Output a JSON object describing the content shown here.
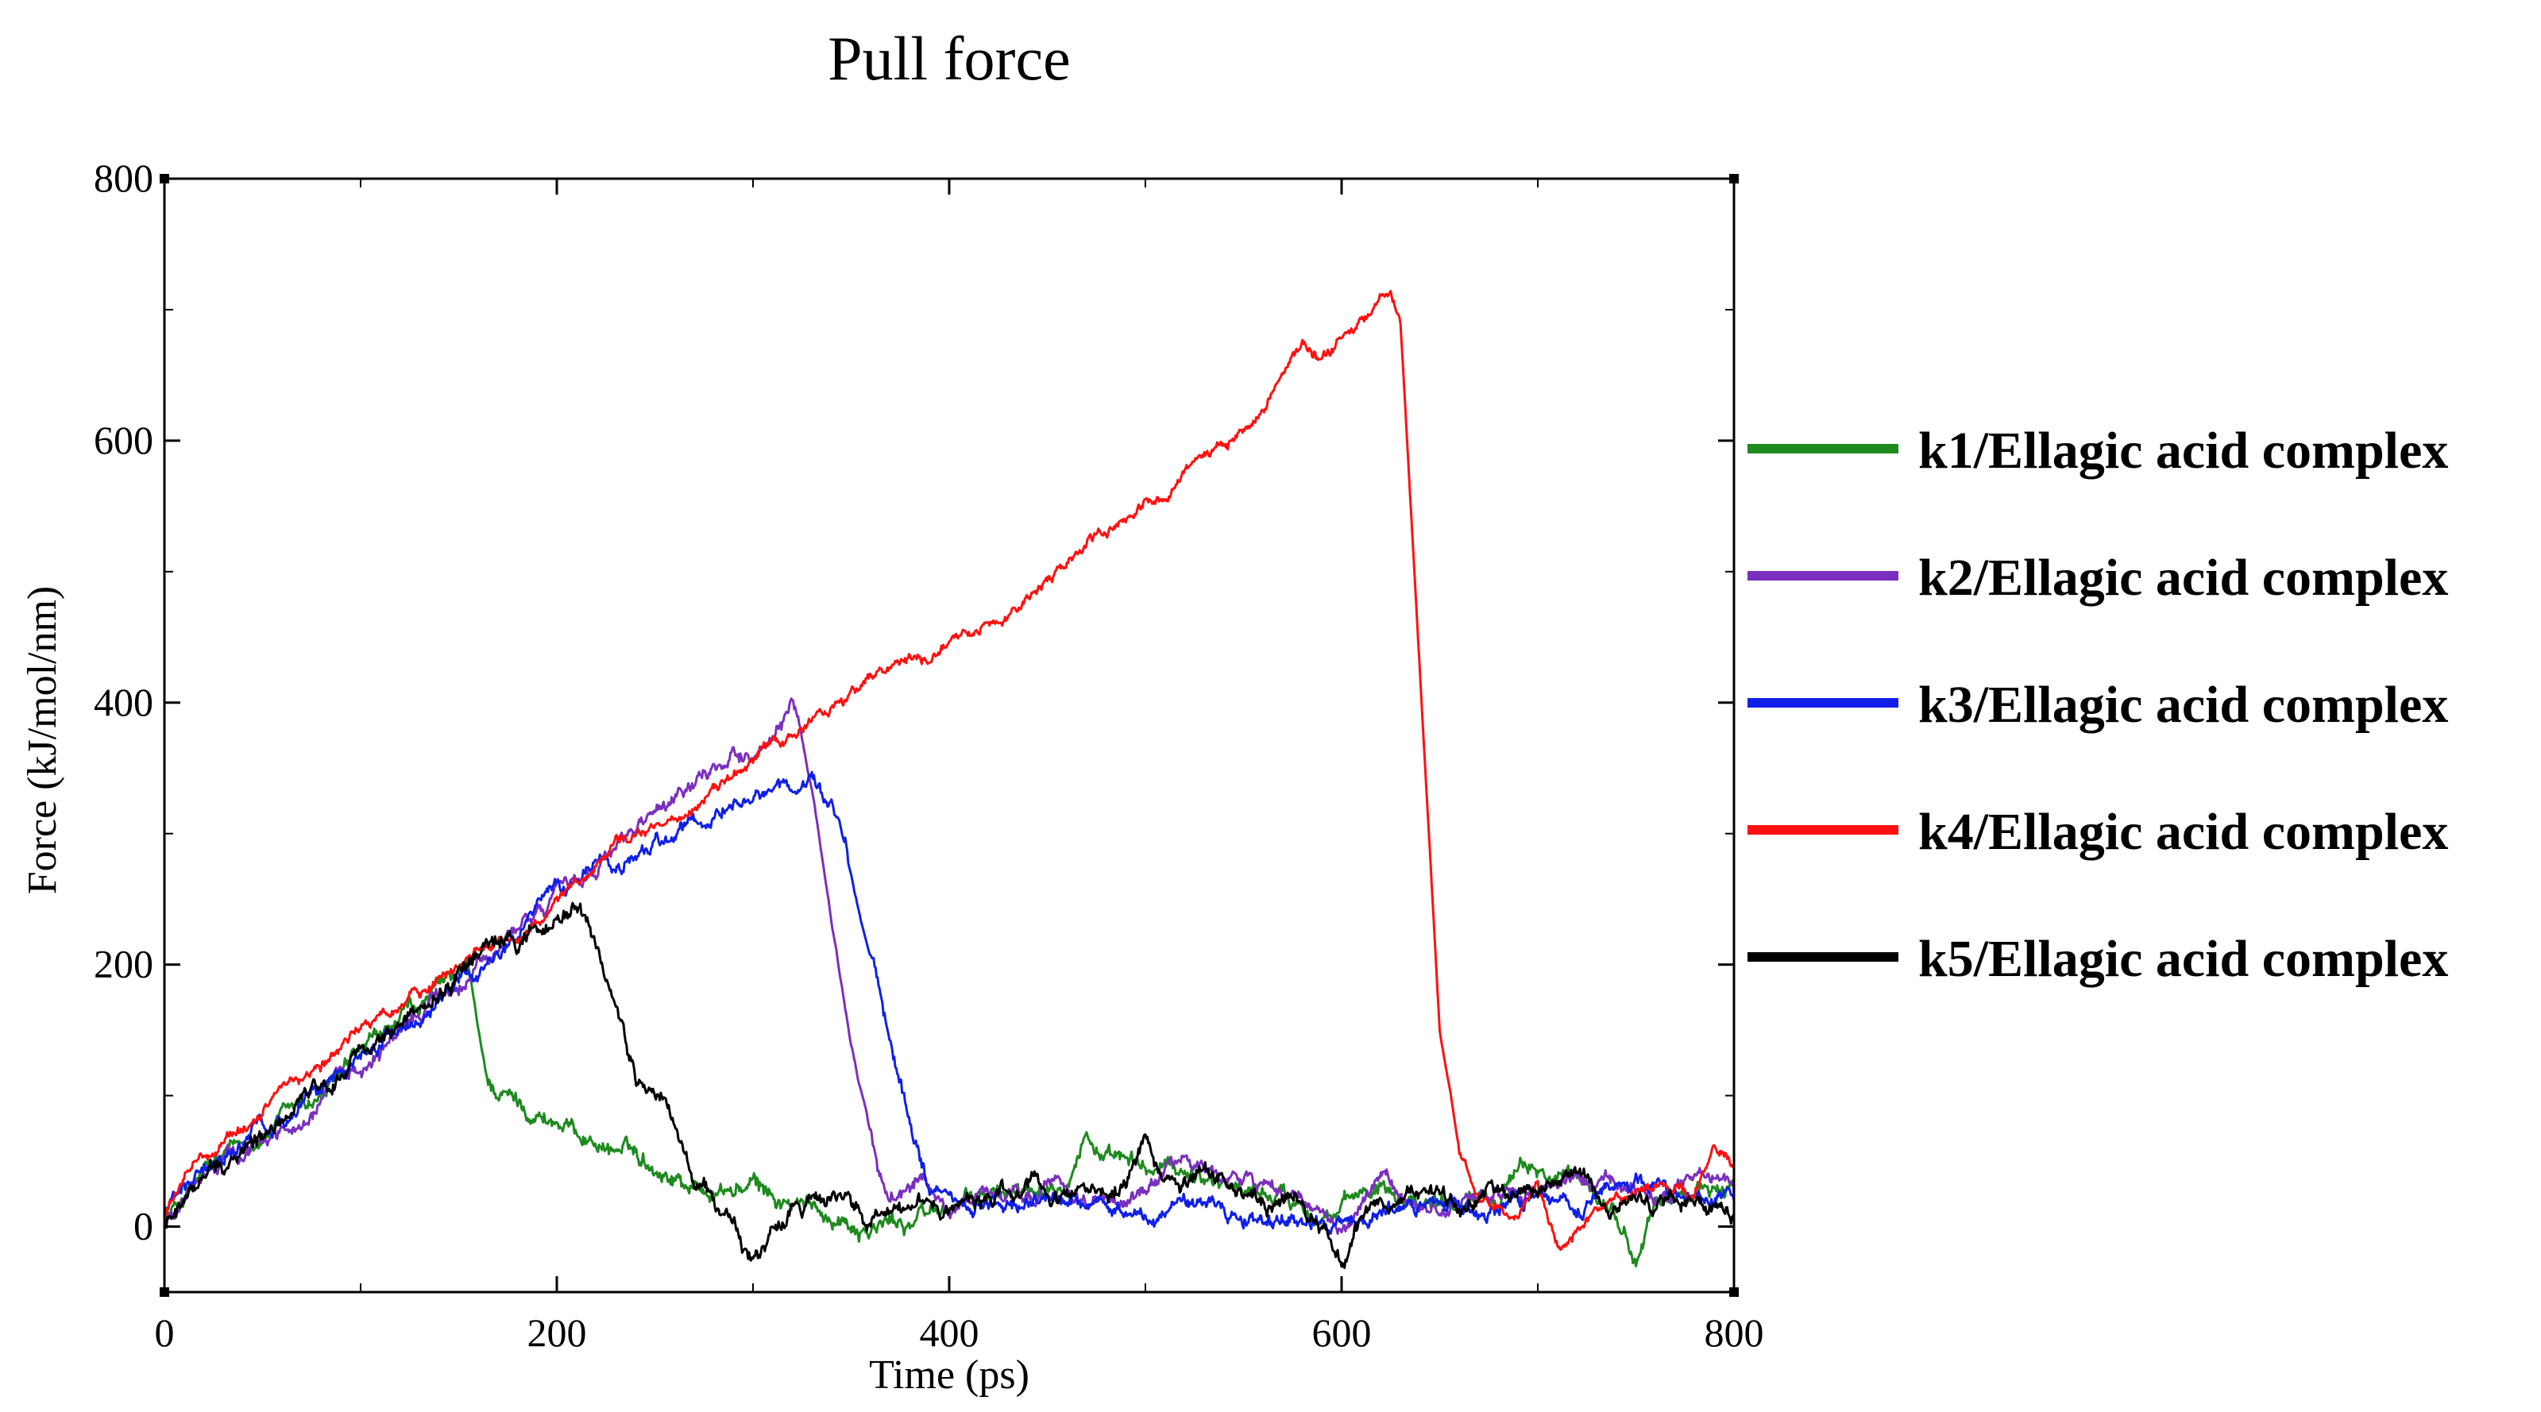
{
  "chart_data": {
    "type": "line",
    "title": "Pull force",
    "xlabel": "Time (ps)",
    "ylabel": "Force (kJ/mol/nm)",
    "xlim": [
      0,
      800
    ],
    "ylim": [
      -50,
      800
    ],
    "xticks": [
      0,
      200,
      400,
      600,
      800
    ],
    "yticks": [
      0,
      200,
      400,
      600,
      800
    ],
    "grid": false,
    "legend_position": "right",
    "series": [
      {
        "name": "k1/Ellagic acid complex",
        "color": "#1f8a1f",
        "noise": 8,
        "points": [
          [
            0,
            5
          ],
          [
            20,
            40
          ],
          [
            50,
            70
          ],
          [
            80,
            100
          ],
          [
            110,
            140
          ],
          [
            140,
            180
          ],
          [
            155,
            195
          ],
          [
            160,
            150
          ],
          [
            165,
            110
          ],
          [
            180,
            95
          ],
          [
            200,
            80
          ],
          [
            220,
            65
          ],
          [
            240,
            55
          ],
          [
            260,
            40
          ],
          [
            280,
            25
          ],
          [
            300,
            30
          ],
          [
            320,
            15
          ],
          [
            340,
            10
          ],
          [
            360,
            0
          ],
          [
            380,
            5
          ],
          [
            400,
            15
          ],
          [
            430,
            25
          ],
          [
            460,
            45
          ],
          [
            470,
            75
          ],
          [
            480,
            50
          ],
          [
            500,
            40
          ],
          [
            520,
            45
          ],
          [
            550,
            30
          ],
          [
            580,
            20
          ],
          [
            600,
            10
          ],
          [
            620,
            35
          ],
          [
            650,
            20
          ],
          [
            680,
            30
          ],
          [
            700,
            45
          ],
          [
            720,
            30
          ],
          [
            740,
            10
          ],
          [
            750,
            -30
          ],
          [
            760,
            20
          ],
          [
            780,
            25
          ],
          [
            800,
            30
          ]
        ]
      },
      {
        "name": "k2/Ellagic acid complex",
        "color": "#7b2fbe",
        "noise": 7,
        "points": [
          [
            0,
            5
          ],
          [
            20,
            40
          ],
          [
            50,
            65
          ],
          [
            80,
            95
          ],
          [
            110,
            135
          ],
          [
            140,
            175
          ],
          [
            170,
            210
          ],
          [
            200,
            255
          ],
          [
            230,
            290
          ],
          [
            260,
            320
          ],
          [
            290,
            355
          ],
          [
            310,
            375
          ],
          [
            320,
            395
          ],
          [
            325,
            370
          ],
          [
            330,
            330
          ],
          [
            340,
            230
          ],
          [
            350,
            140
          ],
          [
            360,
            70
          ],
          [
            370,
            25
          ],
          [
            385,
            40
          ],
          [
            400,
            15
          ],
          [
            430,
            20
          ],
          [
            460,
            25
          ],
          [
            490,
            20
          ],
          [
            520,
            50
          ],
          [
            550,
            35
          ],
          [
            580,
            20
          ],
          [
            600,
            -5
          ],
          [
            620,
            30
          ],
          [
            640,
            15
          ],
          [
            670,
            20
          ],
          [
            700,
            30
          ],
          [
            720,
            35
          ],
          [
            740,
            30
          ],
          [
            760,
            20
          ],
          [
            780,
            30
          ],
          [
            800,
            25
          ]
        ]
      },
      {
        "name": "k3/Ellagic acid complex",
        "color": "#1020e8",
        "noise": 7,
        "points": [
          [
            0,
            10
          ],
          [
            20,
            45
          ],
          [
            50,
            75
          ],
          [
            80,
            105
          ],
          [
            110,
            140
          ],
          [
            140,
            175
          ],
          [
            170,
            210
          ],
          [
            200,
            255
          ],
          [
            230,
            275
          ],
          [
            260,
            295
          ],
          [
            290,
            320
          ],
          [
            310,
            330
          ],
          [
            330,
            335
          ],
          [
            340,
            320
          ],
          [
            350,
            270
          ],
          [
            360,
            200
          ],
          [
            370,
            140
          ],
          [
            380,
            80
          ],
          [
            390,
            30
          ],
          [
            400,
            20
          ],
          [
            430,
            15
          ],
          [
            460,
            20
          ],
          [
            490,
            10
          ],
          [
            520,
            15
          ],
          [
            550,
            5
          ],
          [
            580,
            10
          ],
          [
            600,
            5
          ],
          [
            620,
            15
          ],
          [
            650,
            20
          ],
          [
            680,
            10
          ],
          [
            700,
            20
          ],
          [
            720,
            15
          ],
          [
            750,
            35
          ],
          [
            780,
            25
          ],
          [
            800,
            20
          ]
        ]
      },
      {
        "name": "k4/Ellagic acid complex",
        "color": "#ff1010",
        "noise": 5,
        "points": [
          [
            0,
            10
          ],
          [
            20,
            55
          ],
          [
            50,
            90
          ],
          [
            80,
            125
          ],
          [
            110,
            160
          ],
          [
            140,
            190
          ],
          [
            150,
            200
          ],
          [
            160,
            215
          ],
          [
            175,
            215
          ],
          [
            200,
            245
          ],
          [
            230,
            290
          ],
          [
            260,
            310
          ],
          [
            290,
            345
          ],
          [
            320,
            375
          ],
          [
            350,
            405
          ],
          [
            370,
            430
          ],
          [
            390,
            435
          ],
          [
            410,
            455
          ],
          [
            440,
            480
          ],
          [
            470,
            520
          ],
          [
            500,
            550
          ],
          [
            530,
            585
          ],
          [
            560,
            625
          ],
          [
            580,
            675
          ],
          [
            590,
            665
          ],
          [
            600,
            680
          ],
          [
            615,
            695
          ],
          [
            625,
            715
          ],
          [
            630,
            690
          ],
          [
            640,
            420
          ],
          [
            650,
            150
          ],
          [
            660,
            60
          ],
          [
            670,
            20
          ],
          [
            690,
            5
          ],
          [
            700,
            25
          ],
          [
            710,
            -15
          ],
          [
            720,
            0
          ],
          [
            740,
            20
          ],
          [
            760,
            30
          ],
          [
            780,
            25
          ],
          [
            790,
            60
          ],
          [
            800,
            45
          ]
        ]
      },
      {
        "name": "k5/Ellagic acid complex",
        "color": "#000000",
        "noise": 8,
        "points": [
          [
            0,
            0
          ],
          [
            20,
            35
          ],
          [
            50,
            65
          ],
          [
            80,
            105
          ],
          [
            110,
            145
          ],
          [
            140,
            180
          ],
          [
            160,
            205
          ],
          [
            180,
            220
          ],
          [
            200,
            235
          ],
          [
            210,
            245
          ],
          [
            220,
            215
          ],
          [
            230,
            170
          ],
          [
            240,
            110
          ],
          [
            255,
            95
          ],
          [
            260,
            70
          ],
          [
            270,
            30
          ],
          [
            280,
            20
          ],
          [
            300,
            -30
          ],
          [
            310,
            -15
          ],
          [
            320,
            10
          ],
          [
            340,
            25
          ],
          [
            360,
            5
          ],
          [
            380,
            10
          ],
          [
            400,
            20
          ],
          [
            430,
            30
          ],
          [
            460,
            25
          ],
          [
            490,
            30
          ],
          [
            500,
            70
          ],
          [
            510,
            25
          ],
          [
            530,
            40
          ],
          [
            560,
            20
          ],
          [
            580,
            15
          ],
          [
            600,
            -30
          ],
          [
            610,
            10
          ],
          [
            630,
            25
          ],
          [
            650,
            15
          ],
          [
            680,
            30
          ],
          [
            700,
            25
          ],
          [
            720,
            40
          ],
          [
            740,
            25
          ],
          [
            760,
            20
          ],
          [
            780,
            25
          ],
          [
            800,
            10
          ]
        ]
      }
    ]
  }
}
